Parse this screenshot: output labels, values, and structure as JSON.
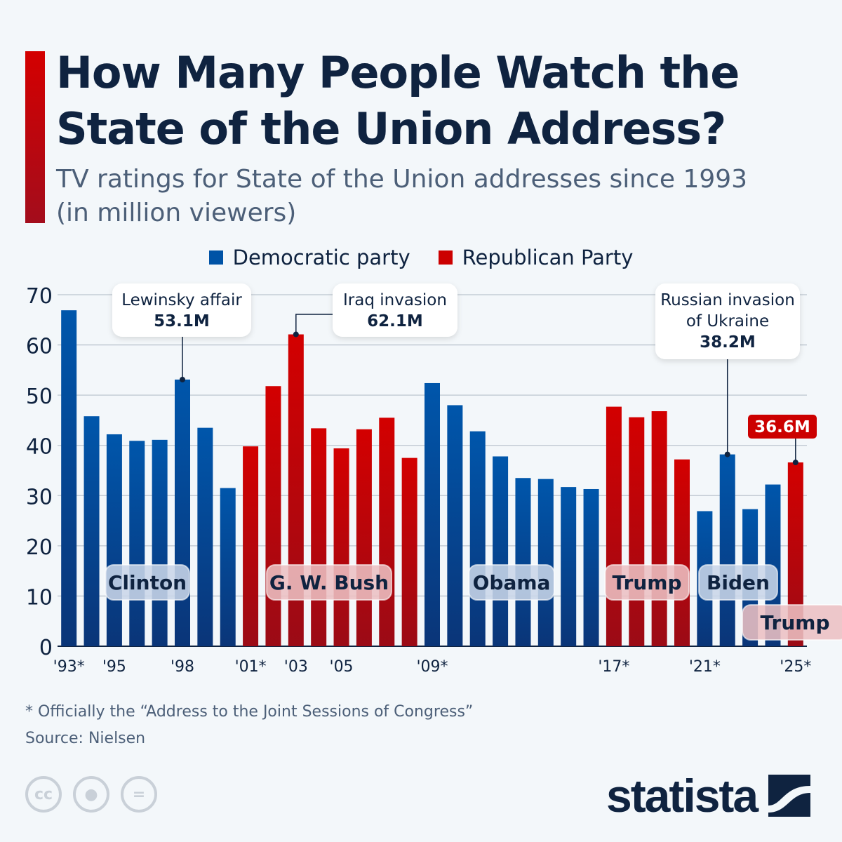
{
  "header": {
    "title": "How Many People Watch the State of the Union Address?",
    "subtitle": "TV ratings for State of the Union addresses since 1993 (in million viewers)"
  },
  "colors": {
    "democratic": "#0053a6",
    "republican": "#cc0000",
    "accent": "#d40000",
    "text": "#0f2340"
  },
  "chart_data": {
    "type": "bar",
    "title": "How Many People Watch the State of the Union Address?",
    "ylabel": "",
    "xlabel": "",
    "ylim": [
      0,
      70
    ],
    "yticks": [
      0,
      10,
      20,
      30,
      40,
      50,
      60,
      70
    ],
    "grid": true,
    "legend_position": "top",
    "legend": [
      {
        "name": "Democratic party",
        "color": "#0053a6"
      },
      {
        "name": "Republican Party",
        "color": "#cc0000"
      }
    ],
    "categories": [
      "1993",
      "1994",
      "1995",
      "1996",
      "1997",
      "1998",
      "1999",
      "2000",
      "2001",
      "2002",
      "2003",
      "2004",
      "2005",
      "2006",
      "2007",
      "2008",
      "2009",
      "2010",
      "2011",
      "2012",
      "2013",
      "2014",
      "2015",
      "2016",
      "2017",
      "2018",
      "2019",
      "2020",
      "2021",
      "2022",
      "2023",
      "2024",
      "2025"
    ],
    "values": [
      66.9,
      45.8,
      42.2,
      40.9,
      41.1,
      53.1,
      43.5,
      31.5,
      39.8,
      51.8,
      62.1,
      43.4,
      39.4,
      43.2,
      45.5,
      37.5,
      52.4,
      48.0,
      42.8,
      37.8,
      33.5,
      33.3,
      31.7,
      31.3,
      47.7,
      45.6,
      46.8,
      37.2,
      26.9,
      38.2,
      27.3,
      32.2,
      36.6
    ],
    "party": [
      "D",
      "D",
      "D",
      "D",
      "D",
      "D",
      "D",
      "D",
      "R",
      "R",
      "R",
      "R",
      "R",
      "R",
      "R",
      "R",
      "D",
      "D",
      "D",
      "D",
      "D",
      "D",
      "D",
      "D",
      "R",
      "R",
      "R",
      "R",
      "D",
      "D",
      "D",
      "D",
      "R"
    ],
    "xtick_labels": [
      {
        "index": 0,
        "label": "'93*"
      },
      {
        "index": 2,
        "label": "'95"
      },
      {
        "index": 5,
        "label": "'98"
      },
      {
        "index": 8,
        "label": "'01*"
      },
      {
        "index": 10,
        "label": "'03"
      },
      {
        "index": 12,
        "label": "'05"
      },
      {
        "index": 16,
        "label": "'09*"
      },
      {
        "index": 24,
        "label": "'17*"
      },
      {
        "index": 28,
        "label": "'21*"
      },
      {
        "index": 32,
        "label": "'25*"
      }
    ],
    "presidents": [
      {
        "name": "Clinton",
        "party": "D"
      },
      {
        "name": "G. W. Bush",
        "party": "R"
      },
      {
        "name": "Obama",
        "party": "D"
      },
      {
        "name": "Trump",
        "party": "R"
      },
      {
        "name": "Biden",
        "party": "D"
      },
      {
        "name": "Trump",
        "party": "R"
      }
    ],
    "annotations": [
      {
        "index": 5,
        "text": "Lewinsky affair",
        "value": "53.1M"
      },
      {
        "index": 10,
        "text": "Iraq invasion",
        "value": "62.1M"
      },
      {
        "index": 29,
        "text": "Russian invasion of Ukraine",
        "value": "38.2M"
      },
      {
        "index": 32,
        "text": "",
        "value": "36.6M"
      }
    ]
  },
  "footer": {
    "note": "* Officially the “Address to the Joint Sessions of Congress”",
    "source": "Source: Nielsen",
    "license_icons": [
      "cc-icon",
      "attribution-icon",
      "no-derivatives-icon"
    ],
    "brand": "statista"
  }
}
